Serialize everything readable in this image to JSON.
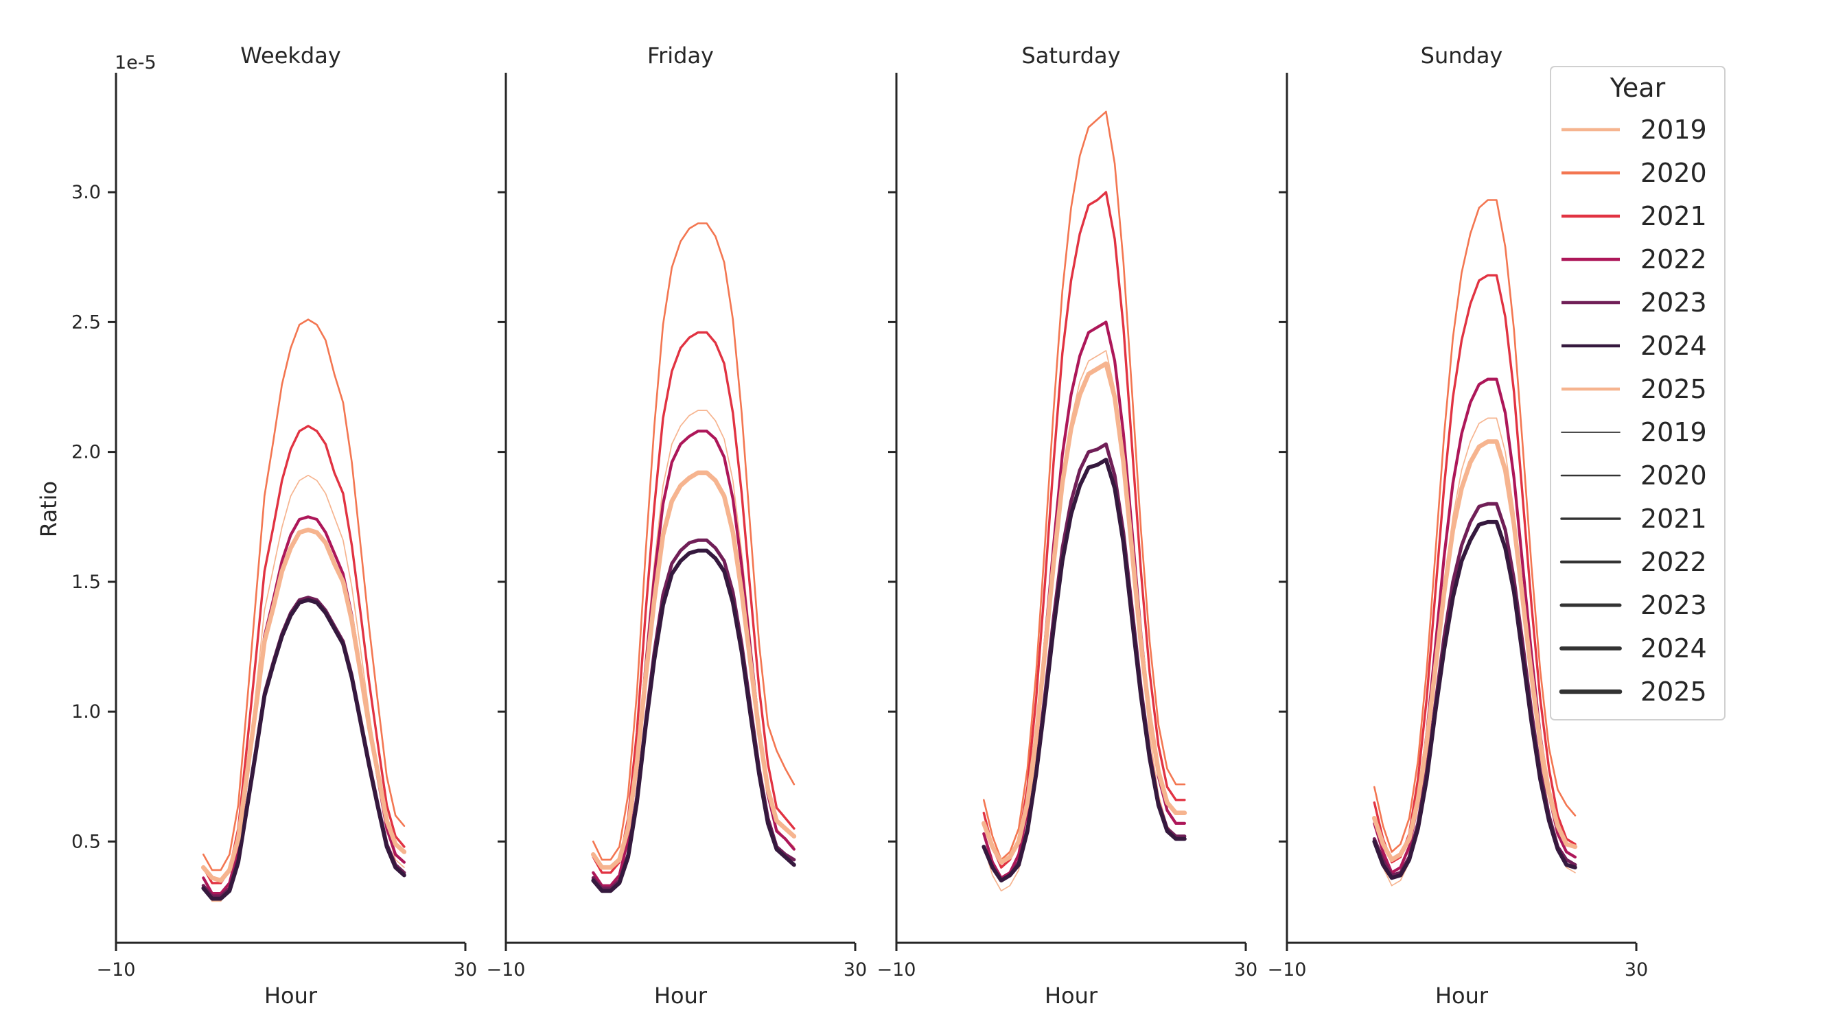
{
  "chart_data": {
    "type": "line",
    "y_offset_label": "1e-5",
    "ylabel": "Ratio",
    "ylim": [
      0.11,
      3.46
    ],
    "yticks": [
      "0.5",
      "1.0",
      "1.5",
      "2.0",
      "2.5",
      "3.0"
    ],
    "xlim": [
      -10,
      30
    ],
    "xticks": [
      "−10",
      "30"
    ],
    "grid": false,
    "legend": {
      "title": "Year",
      "placement": "top-right",
      "hue_entries": [
        "2019",
        "2020",
        "2021",
        "2022",
        "2023",
        "2024",
        "2025"
      ],
      "size_entries": [
        "2019",
        "2020",
        "2021",
        "2022",
        "2023",
        "2024",
        "2025"
      ]
    },
    "colors": {
      "2019": "#f6b48f",
      "2020": "#f37651",
      "2021": "#e13342",
      "2022": "#ad1759",
      "2023": "#701f57",
      "2024": "#35193e",
      "2025": "#f6b48f"
    },
    "x": [
      0,
      1,
      2,
      3,
      4,
      5,
      6,
      7,
      8,
      9,
      10,
      11,
      12,
      13,
      14,
      15,
      16,
      17,
      18,
      19,
      20,
      21,
      22,
      23
    ],
    "panels": [
      {
        "title": "Weekday",
        "xlabel": "Hour",
        "series": [
          {
            "name": "2019",
            "values": [
              0.33,
              0.27,
              0.27,
              0.32,
              0.47,
              0.76,
              1.07,
              1.39,
              1.55,
              1.71,
              1.83,
              1.89,
              1.91,
              1.89,
              1.84,
              1.75,
              1.66,
              1.48,
              1.24,
              0.99,
              0.76,
              0.55,
              0.43,
              0.4
            ]
          },
          {
            "name": "2020",
            "values": [
              0.45,
              0.39,
              0.39,
              0.45,
              0.64,
              1.03,
              1.43,
              1.83,
              2.04,
              2.26,
              2.4,
              2.49,
              2.51,
              2.49,
              2.43,
              2.3,
              2.19,
              1.96,
              1.64,
              1.32,
              1.03,
              0.75,
              0.6,
              0.56
            ]
          },
          {
            "name": "2021",
            "values": [
              0.4,
              0.34,
              0.34,
              0.39,
              0.55,
              0.87,
              1.2,
              1.54,
              1.71,
              1.89,
              2.01,
              2.08,
              2.1,
              2.08,
              2.03,
              1.92,
              1.84,
              1.64,
              1.38,
              1.11,
              0.87,
              0.64,
              0.52,
              0.48
            ]
          },
          {
            "name": "2022",
            "values": [
              0.36,
              0.3,
              0.3,
              0.34,
              0.47,
              0.74,
              1.01,
              1.29,
              1.43,
              1.58,
              1.68,
              1.74,
              1.75,
              1.74,
              1.69,
              1.61,
              1.53,
              1.37,
              1.16,
              0.94,
              0.74,
              0.55,
              0.45,
              0.42
            ]
          },
          {
            "name": "2023",
            "values": [
              0.33,
              0.29,
              0.29,
              0.32,
              0.43,
              0.64,
              0.85,
              1.07,
              1.19,
              1.3,
              1.38,
              1.43,
              1.44,
              1.43,
              1.39,
              1.33,
              1.27,
              1.14,
              0.97,
              0.8,
              0.64,
              0.49,
              0.41,
              0.38
            ]
          },
          {
            "name": "2024",
            "values": [
              0.32,
              0.28,
              0.28,
              0.31,
              0.42,
              0.63,
              0.84,
              1.06,
              1.18,
              1.29,
              1.37,
              1.42,
              1.43,
              1.42,
              1.38,
              1.32,
              1.26,
              1.13,
              0.96,
              0.79,
              0.63,
              0.48,
              0.4,
              0.37
            ]
          },
          {
            "name": "2025",
            "values": [
              0.4,
              0.36,
              0.35,
              0.39,
              0.51,
              0.76,
              1.01,
              1.27,
              1.4,
              1.54,
              1.63,
              1.69,
              1.7,
              1.69,
              1.65,
              1.57,
              1.5,
              1.35,
              1.15,
              0.94,
              0.76,
              0.58,
              0.49,
              0.46
            ]
          }
        ]
      },
      {
        "title": "Friday",
        "xlabel": "Hour",
        "series": [
          {
            "name": "2019",
            "values": [
              0.38,
              0.33,
              0.33,
              0.37,
              0.51,
              0.81,
              1.21,
              1.57,
              1.87,
              2.03,
              2.1,
              2.14,
              2.16,
              2.16,
              2.12,
              2.05,
              1.89,
              1.61,
              1.28,
              0.95,
              0.7,
              0.55,
              0.51,
              0.48
            ]
          },
          {
            "name": "2020",
            "values": [
              0.5,
              0.43,
              0.43,
              0.48,
              0.68,
              1.07,
              1.61,
              2.1,
              2.49,
              2.71,
              2.81,
              2.86,
              2.88,
              2.88,
              2.83,
              2.73,
              2.51,
              2.15,
              1.7,
              1.26,
              0.95,
              0.85,
              0.78,
              0.72
            ]
          },
          {
            "name": "2021",
            "values": [
              0.44,
              0.38,
              0.38,
              0.42,
              0.59,
              0.92,
              1.38,
              1.79,
              2.13,
              2.31,
              2.4,
              2.44,
              2.46,
              2.46,
              2.42,
              2.34,
              2.15,
              1.84,
              1.46,
              1.09,
              0.8,
              0.63,
              0.59,
              0.55
            ]
          },
          {
            "name": "2022",
            "values": [
              0.38,
              0.33,
              0.33,
              0.37,
              0.51,
              0.79,
              1.17,
              1.52,
              1.8,
              1.96,
              2.03,
              2.06,
              2.08,
              2.08,
              2.05,
              1.98,
              1.82,
              1.56,
              1.24,
              0.93,
              0.68,
              0.54,
              0.51,
              0.47
            ]
          },
          {
            "name": "2023",
            "values": [
              0.36,
              0.32,
              0.32,
              0.35,
              0.45,
              0.67,
              0.96,
              1.23,
              1.45,
              1.57,
              1.62,
              1.65,
              1.66,
              1.66,
              1.63,
              1.58,
              1.46,
              1.26,
              1.02,
              0.78,
              0.59,
              0.48,
              0.45,
              0.43
            ]
          },
          {
            "name": "2024",
            "values": [
              0.35,
              0.31,
              0.31,
              0.34,
              0.44,
              0.65,
              0.94,
              1.2,
              1.41,
              1.53,
              1.58,
              1.61,
              1.62,
              1.62,
              1.59,
              1.54,
              1.42,
              1.23,
              0.99,
              0.76,
              0.57,
              0.47,
              0.44,
              0.41
            ]
          },
          {
            "name": "2025",
            "values": [
              0.45,
              0.4,
              0.4,
              0.43,
              0.55,
              0.8,
              1.13,
              1.43,
              1.68,
              1.81,
              1.87,
              1.9,
              1.92,
              1.92,
              1.89,
              1.83,
              1.69,
              1.46,
              1.19,
              0.92,
              0.7,
              0.58,
              0.55,
              0.52
            ]
          }
        ]
      },
      {
        "title": "Saturday",
        "xlabel": "Hour",
        "series": [
          {
            "name": "2019",
            "values": [
              0.48,
              0.37,
              0.31,
              0.33,
              0.39,
              0.56,
              0.83,
              1.18,
              1.56,
              1.89,
              2.12,
              2.27,
              2.35,
              2.37,
              2.39,
              2.24,
              1.97,
              1.6,
              1.23,
              0.91,
              0.68,
              0.56,
              0.52,
              0.52
            ]
          },
          {
            "name": "2020",
            "values": [
              0.66,
              0.52,
              0.43,
              0.46,
              0.55,
              0.78,
              1.15,
              1.64,
              2.16,
              2.62,
              2.94,
              3.14,
              3.25,
              3.28,
              3.31,
              3.11,
              2.73,
              2.22,
              1.7,
              1.27,
              0.95,
              0.78,
              0.72,
              0.72
            ]
          },
          {
            "name": "2021",
            "values": [
              0.61,
              0.48,
              0.4,
              0.43,
              0.5,
              0.71,
              1.05,
              1.49,
              1.96,
              2.38,
              2.66,
              2.84,
              2.95,
              2.97,
              3.0,
              2.82,
              2.48,
              2.01,
              1.54,
              1.15,
              0.87,
              0.71,
              0.66,
              0.66
            ]
          },
          {
            "name": "2022",
            "values": [
              0.53,
              0.42,
              0.36,
              0.38,
              0.45,
              0.62,
              0.9,
              1.26,
              1.64,
              1.99,
              2.22,
              2.37,
              2.46,
              2.48,
              2.5,
              2.35,
              2.07,
              1.69,
              1.3,
              0.98,
              0.75,
              0.62,
              0.57,
              0.57
            ]
          },
          {
            "name": "2023",
            "values": [
              0.48,
              0.4,
              0.35,
              0.37,
              0.42,
              0.55,
              0.77,
              1.06,
              1.36,
              1.63,
              1.81,
              1.93,
              2.0,
              2.01,
              2.03,
              1.91,
              1.69,
              1.39,
              1.09,
              0.84,
              0.65,
              0.55,
              0.52,
              0.52
            ]
          },
          {
            "name": "2024",
            "values": [
              0.48,
              0.4,
              0.35,
              0.37,
              0.41,
              0.54,
              0.76,
              1.03,
              1.32,
              1.58,
              1.76,
              1.87,
              1.94,
              1.95,
              1.97,
              1.86,
              1.65,
              1.35,
              1.06,
              0.82,
              0.64,
              0.54,
              0.51,
              0.51
            ]
          },
          {
            "name": "2025",
            "values": [
              0.57,
              0.48,
              0.42,
              0.44,
              0.5,
              0.65,
              0.9,
              1.23,
              1.57,
              1.88,
              2.09,
              2.22,
              2.3,
              2.32,
              2.34,
              2.21,
              1.96,
              1.61,
              1.26,
              0.98,
              0.77,
              0.65,
              0.61,
              0.61
            ]
          }
        ]
      },
      {
        "title": "Sunday",
        "xlabel": "Hour",
        "series": [
          {
            "name": "2019",
            "values": [
              0.51,
              0.4,
              0.33,
              0.35,
              0.42,
              0.58,
              0.83,
              1.16,
              1.48,
              1.75,
              1.93,
              2.04,
              2.11,
              2.13,
              2.13,
              2.0,
              1.77,
              1.45,
              1.12,
              0.83,
              0.62,
              0.47,
              0.4,
              0.38
            ]
          },
          {
            "name": "2020",
            "values": [
              0.71,
              0.56,
              0.46,
              0.49,
              0.59,
              0.81,
              1.16,
              1.61,
              2.07,
              2.44,
              2.69,
              2.84,
              2.94,
              2.97,
              2.97,
              2.79,
              2.47,
              2.02,
              1.56,
              1.16,
              0.86,
              0.7,
              0.64,
              0.6
            ]
          },
          {
            "name": "2021",
            "values": [
              0.65,
              0.51,
              0.42,
              0.44,
              0.53,
              0.74,
              1.05,
              1.46,
              1.87,
              2.21,
              2.43,
              2.57,
              2.66,
              2.68,
              2.68,
              2.52,
              2.23,
              1.82,
              1.41,
              1.05,
              0.78,
              0.6,
              0.51,
              0.49
            ]
          },
          {
            "name": "2022",
            "values": [
              0.57,
              0.46,
              0.38,
              0.4,
              0.48,
              0.65,
              0.91,
              1.25,
              1.6,
              1.88,
              2.07,
              2.19,
              2.26,
              2.28,
              2.28,
              2.15,
              1.9,
              1.56,
              1.22,
              0.91,
              0.68,
              0.53,
              0.46,
              0.44
            ]
          },
          {
            "name": "2023",
            "values": [
              0.51,
              0.43,
              0.37,
              0.38,
              0.44,
              0.57,
              0.77,
              1.03,
              1.29,
              1.5,
              1.64,
              1.73,
              1.79,
              1.8,
              1.8,
              1.7,
              1.51,
              1.26,
              1.0,
              0.77,
              0.6,
              0.48,
              0.43,
              0.41
            ]
          },
          {
            "name": "2024",
            "values": [
              0.5,
              0.41,
              0.36,
              0.37,
              0.43,
              0.55,
              0.74,
              1.0,
              1.24,
              1.44,
              1.58,
              1.66,
              1.72,
              1.73,
              1.73,
              1.63,
              1.46,
              1.21,
              0.96,
              0.74,
              0.58,
              0.47,
              0.41,
              0.4
            ]
          },
          {
            "name": "2025",
            "values": [
              0.59,
              0.49,
              0.43,
              0.45,
              0.51,
              0.66,
              0.88,
              1.17,
              1.46,
              1.7,
              1.86,
              1.96,
              2.02,
              2.04,
              2.04,
              1.93,
              1.72,
              1.43,
              1.14,
              0.88,
              0.69,
              0.56,
              0.49,
              0.48
            ]
          }
        ]
      }
    ]
  }
}
